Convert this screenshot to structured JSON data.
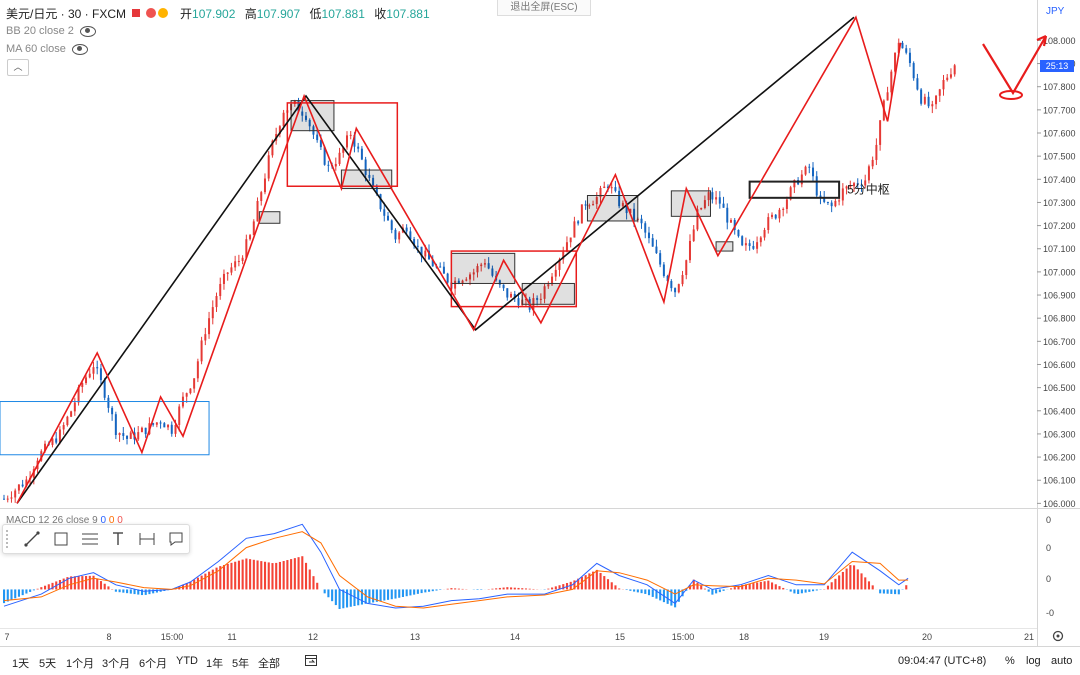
{
  "header": {
    "symbol": "美元/日元 · 30 · FXCM",
    "open_label": "开",
    "open": "107.902",
    "high_label": "高",
    "high": "107.907",
    "low_label": "低",
    "low": "107.881",
    "close_label": "收",
    "close": "107.881"
  },
  "indicators": {
    "bb": "BB 20 close 2",
    "ma": "MA 60 close"
  },
  "exit_fullscreen": "退出全屏(ESC)",
  "currency_tag": "JPY",
  "countdown": "25:13",
  "annotation_label": "5分中枢",
  "macd": {
    "label": "MACD 12 26 close 9",
    "v1": "0",
    "v2": "0",
    "v3": "0"
  },
  "toolbar_icons": [
    "trend-line-icon",
    "rectangle-icon",
    "fib-icon",
    "text-icon",
    "measure-icon",
    "comment-icon"
  ],
  "bottom": {
    "ranges": [
      "1天",
      "5天",
      "1个月",
      "3个月",
      "6个月",
      "YTD",
      "1年",
      "5年",
      "全部"
    ],
    "time": "09:04:47 (UTC+8)",
    "pct": "%",
    "log": "log",
    "auto": "auto"
  },
  "colors": {
    "up": "#26a69a",
    "down": "#2962ff",
    "bars_up": "#ef5350",
    "stroke_red": "#e81c1c",
    "black": "#111111",
    "blue_box": "#1e88e5"
  },
  "chart_data": {
    "type": "line",
    "title": "",
    "price_axis": {
      "min": 105.98,
      "max": 108.14,
      "ticks": [
        "108.000",
        "107.900",
        "107.800",
        "107.700",
        "107.600",
        "107.500",
        "107.400",
        "107.300",
        "107.200",
        "107.100",
        "107.000",
        "106.900",
        "106.800",
        "106.700",
        "106.600",
        "106.500",
        "106.400",
        "106.300",
        "106.200",
        "106.100",
        "106.000"
      ]
    },
    "time_ticks": [
      "7",
      "8",
      "15:00",
      "11",
      "12",
      "13",
      "14",
      "15",
      "15:00",
      "18",
      "19",
      "20",
      "21"
    ],
    "macd_ticks": [
      "0",
      "0",
      "0",
      "-0"
    ],
    "price_series": [
      [
        0,
        106.02
      ],
      [
        6,
        106.06
      ],
      [
        12,
        106.1
      ],
      [
        18,
        106.2
      ],
      [
        24,
        106.25
      ],
      [
        30,
        106.3
      ],
      [
        36,
        106.4
      ],
      [
        42,
        106.52
      ],
      [
        48,
        106.6
      ],
      [
        54,
        106.48
      ],
      [
        60,
        106.32
      ],
      [
        66,
        106.28
      ],
      [
        72,
        106.3
      ],
      [
        78,
        106.33
      ],
      [
        84,
        106.36
      ],
      [
        90,
        106.32
      ],
      [
        96,
        106.45
      ],
      [
        102,
        106.55
      ],
      [
        108,
        106.75
      ],
      [
        114,
        106.9
      ],
      [
        120,
        107.0
      ],
      [
        126,
        107.05
      ],
      [
        132,
        107.15
      ],
      [
        138,
        107.35
      ],
      [
        144,
        107.55
      ],
      [
        150,
        107.7
      ],
      [
        156,
        107.72
      ],
      [
        162,
        107.68
      ],
      [
        168,
        107.55
      ],
      [
        174,
        107.45
      ],
      [
        180,
        107.5
      ],
      [
        186,
        107.6
      ],
      [
        192,
        107.48
      ],
      [
        198,
        107.35
      ],
      [
        204,
        107.25
      ],
      [
        210,
        107.15
      ],
      [
        216,
        107.2
      ],
      [
        222,
        107.1
      ],
      [
        228,
        107.05
      ],
      [
        234,
        107.0
      ],
      [
        240,
        106.95
      ],
      [
        246,
        106.98
      ],
      [
        252,
        107.0
      ],
      [
        258,
        107.05
      ],
      [
        264,
        106.95
      ],
      [
        270,
        106.9
      ],
      [
        276,
        106.88
      ],
      [
        282,
        106.85
      ],
      [
        288,
        106.9
      ],
      [
        294,
        107.0
      ],
      [
        300,
        107.1
      ],
      [
        306,
        107.2
      ],
      [
        312,
        107.3
      ],
      [
        318,
        107.32
      ],
      [
        324,
        107.38
      ],
      [
        330,
        107.3
      ],
      [
        336,
        107.25
      ],
      [
        342,
        107.2
      ],
      [
        348,
        107.1
      ],
      [
        354,
        107.0
      ],
      [
        360,
        106.92
      ],
      [
        366,
        107.05
      ],
      [
        372,
        107.25
      ],
      [
        378,
        107.33
      ],
      [
        384,
        107.3
      ],
      [
        390,
        107.2
      ],
      [
        396,
        107.1
      ],
      [
        402,
        107.12
      ],
      [
        408,
        107.2
      ],
      [
        414,
        107.25
      ],
      [
        420,
        107.32
      ],
      [
        426,
        107.4
      ],
      [
        432,
        107.45
      ],
      [
        438,
        107.3
      ],
      [
        444,
        107.28
      ],
      [
        450,
        107.35
      ],
      [
        456,
        107.38
      ],
      [
        462,
        107.4
      ],
      [
        468,
        107.55
      ],
      [
        474,
        107.8
      ],
      [
        480,
        108.0
      ],
      [
        486,
        107.9
      ],
      [
        492,
        107.75
      ],
      [
        498,
        107.7
      ],
      [
        504,
        107.82
      ],
      [
        510,
        107.9
      ]
    ],
    "zigzag_black": [
      [
        7,
        106.0
      ],
      [
        162,
        107.76
      ],
      [
        253,
        106.75
      ],
      [
        456,
        108.1
      ]
    ],
    "zigzag_red": [
      [
        7,
        106.0
      ],
      [
        50,
        106.65
      ],
      [
        74,
        106.22
      ],
      [
        84,
        106.46
      ],
      [
        96,
        106.29
      ],
      [
        161,
        107.76
      ],
      [
        181,
        107.36
      ],
      [
        189,
        107.62
      ],
      [
        252,
        106.75
      ],
      [
        268,
        107.05
      ],
      [
        288,
        106.78
      ],
      [
        328,
        107.42
      ],
      [
        354,
        106.87
      ],
      [
        366,
        107.36
      ],
      [
        383,
        107.07
      ],
      [
        457,
        108.1
      ],
      [
        474,
        107.65
      ],
      [
        481,
        107.99
      ]
    ],
    "boxes_red": [
      [
        152,
        107.73,
        211,
        107.37
      ],
      [
        240,
        107.09,
        307,
        106.85
      ]
    ],
    "box_blue": [
      0,
      106.44,
      110,
      106.21
    ],
    "box_black": [
      400,
      107.39,
      448,
      107.32
    ],
    "small_boxes": [
      [
        154,
        107.74,
        177,
        107.61
      ],
      [
        181,
        107.44,
        208,
        107.36
      ],
      [
        240,
        107.08,
        274,
        106.95
      ],
      [
        278,
        106.95,
        306,
        106.86
      ],
      [
        313,
        107.33,
        340,
        107.22
      ],
      [
        358,
        107.35,
        379,
        107.24
      ],
      [
        137,
        107.26,
        148,
        107.21
      ],
      [
        382,
        107.13,
        391,
        107.09
      ]
    ],
    "macd_fast": [
      [
        0,
        -0.18
      ],
      [
        20,
        -0.05
      ],
      [
        35,
        0.12
      ],
      [
        48,
        0.18
      ],
      [
        60,
        0.05
      ],
      [
        75,
        -0.02
      ],
      [
        90,
        0.0
      ],
      [
        100,
        0.08
      ],
      [
        115,
        0.3
      ],
      [
        130,
        0.55
      ],
      [
        145,
        0.6
      ],
      [
        160,
        0.7
      ],
      [
        170,
        0.4
      ],
      [
        180,
        0.0
      ],
      [
        195,
        -0.15
      ],
      [
        210,
        -0.2
      ],
      [
        225,
        -0.18
      ],
      [
        240,
        -0.12
      ],
      [
        255,
        -0.1
      ],
      [
        270,
        -0.05
      ],
      [
        290,
        -0.05
      ],
      [
        305,
        0.05
      ],
      [
        318,
        0.28
      ],
      [
        330,
        0.15
      ],
      [
        345,
        0.05
      ],
      [
        360,
        -0.15
      ],
      [
        370,
        0.1
      ],
      [
        380,
        0.0
      ],
      [
        395,
        0.05
      ],
      [
        410,
        0.15
      ],
      [
        425,
        0.05
      ],
      [
        440,
        0.05
      ],
      [
        455,
        0.4
      ],
      [
        470,
        0.2
      ],
      [
        480,
        0.05
      ],
      [
        485,
        0.12
      ]
    ],
    "macd_slow": [
      [
        0,
        -0.12
      ],
      [
        20,
        -0.08
      ],
      [
        35,
        0.05
      ],
      [
        48,
        0.12
      ],
      [
        60,
        0.08
      ],
      [
        75,
        0.02
      ],
      [
        90,
        0.0
      ],
      [
        100,
        0.04
      ],
      [
        115,
        0.2
      ],
      [
        130,
        0.45
      ],
      [
        145,
        0.55
      ],
      [
        160,
        0.62
      ],
      [
        170,
        0.5
      ],
      [
        180,
        0.15
      ],
      [
        195,
        -0.08
      ],
      [
        210,
        -0.18
      ],
      [
        225,
        -0.2
      ],
      [
        240,
        -0.16
      ],
      [
        255,
        -0.12
      ],
      [
        270,
        -0.08
      ],
      [
        290,
        -0.06
      ],
      [
        305,
        0.0
      ],
      [
        318,
        0.2
      ],
      [
        330,
        0.18
      ],
      [
        345,
        0.1
      ],
      [
        360,
        -0.05
      ],
      [
        370,
        0.05
      ],
      [
        380,
        0.04
      ],
      [
        395,
        0.03
      ],
      [
        410,
        0.12
      ],
      [
        425,
        0.1
      ],
      [
        440,
        0.06
      ],
      [
        455,
        0.3
      ],
      [
        470,
        0.28
      ],
      [
        480,
        0.1
      ],
      [
        485,
        0.1
      ]
    ]
  }
}
